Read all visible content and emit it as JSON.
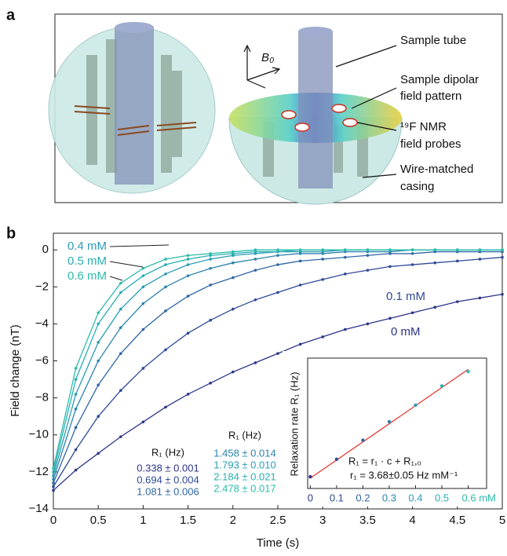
{
  "panel_a": {
    "label": "a",
    "b_field": "B₀",
    "annotations": [
      [
        "Sample tube"
      ],
      [
        "Sample dipolar",
        "field pattern"
      ],
      [
        "¹⁹F NMR",
        "field probes"
      ],
      [
        "Wire-matched",
        "casing"
      ]
    ]
  },
  "rate_table": [
    {
      "header": "R₁ (Hz)",
      "rows": [
        "0.338 ± 0.001",
        "0.694 ± 0.004",
        "1.081 ± 0.006"
      ]
    },
    {
      "header": "R₁ (Hz)",
      "rows": [
        "1.458 ± 0.014",
        "1.793 ± 0.010",
        "2.184 ± 0.021",
        "2.478 ± 0.017"
      ]
    }
  ],
  "chart_data": [
    {
      "type": "line",
      "panel_label": "b",
      "xlabel": "Time (s)",
      "ylabel": "Field change (nT)",
      "xlim": [
        0,
        5
      ],
      "ylim": [
        -14,
        0.9
      ],
      "xticks": [
        0,
        0.5,
        1,
        1.5,
        2,
        2.5,
        3,
        3.5,
        4,
        4.5,
        5
      ],
      "yticks": [
        {
          "value": -14,
          "label": "−14"
        },
        {
          "value": -12,
          "label": "−12"
        },
        {
          "value": -10,
          "label": "−10"
        },
        {
          "value": -8,
          "label": "−8"
        },
        {
          "value": -6,
          "label": "−6"
        },
        {
          "value": -4,
          "label": "−4"
        },
        {
          "value": -2,
          "label": "−2"
        },
        0
      ],
      "x": [
        0,
        0.25,
        0.5,
        0.75,
        1,
        1.25,
        1.5,
        1.75,
        2,
        2.25,
        2.5,
        2.75,
        3,
        3.25,
        3.5,
        3.75,
        4,
        4.25,
        4.5,
        4.75,
        5
      ],
      "series": [
        {
          "name": "0 mM",
          "color": "#2b3589",
          "values": [
            -13.0,
            -11.9,
            -11.0,
            -10.1,
            -9.3,
            -8.5,
            -7.8,
            -7.2,
            -6.6,
            -6.1,
            -5.6,
            -5.1,
            -4.7,
            -4.3,
            -4.0,
            -3.7,
            -3.4,
            -3.1,
            -2.8,
            -2.6,
            -2.4
          ]
        },
        {
          "name": "0.1 mM",
          "color": "#2e4a97",
          "values": [
            -12.8,
            -10.8,
            -9.0,
            -7.6,
            -6.4,
            -5.4,
            -4.5,
            -3.8,
            -3.2,
            -2.7,
            -2.3,
            -1.9,
            -1.6,
            -1.3,
            -1.1,
            -0.9,
            -0.8,
            -0.7,
            -0.6,
            -0.5,
            -0.4
          ]
        },
        {
          "color": "#2f66a4",
          "values": [
            -12.6,
            -9.6,
            -7.3,
            -5.6,
            -4.3,
            -3.3,
            -2.5,
            -1.9,
            -1.5,
            -1.1,
            -0.8,
            -0.6,
            -0.5,
            -0.4,
            -0.3,
            -0.2,
            -0.2,
            -0.1,
            -0.1,
            -0.1,
            -0.1
          ]
        },
        {
          "color": "#2c83ad",
          "values": [
            -12.4,
            -8.6,
            -6.0,
            -4.2,
            -2.9,
            -2.0,
            -1.4,
            -1.0,
            -0.7,
            -0.5,
            -0.3,
            -0.2,
            -0.2,
            -0.1,
            -0.1,
            -0.1,
            0,
            0,
            0,
            0,
            0
          ]
        },
        {
          "name": "0.4 mM",
          "color": "#2a9cb4",
          "values": [
            -12.2,
            -7.8,
            -5.0,
            -3.2,
            -2.0,
            -1.3,
            -0.8,
            -0.5,
            -0.3,
            -0.2,
            -0.1,
            -0.1,
            -0.1,
            0,
            0,
            0,
            0,
            0,
            0,
            0,
            0
          ]
        },
        {
          "name": "0.5 mM",
          "color": "#27aeb2",
          "values": [
            -12.0,
            -7.0,
            -4.0,
            -2.3,
            -1.4,
            -0.8,
            -0.5,
            -0.3,
            -0.2,
            -0.1,
            -0.1,
            0,
            0,
            0,
            0,
            0,
            0,
            0,
            0,
            0,
            0
          ]
        },
        {
          "name": "0.6 mM",
          "color": "#2bbcaa",
          "values": [
            -11.8,
            -6.4,
            -3.4,
            -1.8,
            -1.0,
            -0.5,
            -0.3,
            -0.2,
            -0.1,
            0,
            0,
            0,
            0,
            0,
            0,
            0,
            0,
            0,
            0,
            0,
            0
          ]
        }
      ]
    },
    {
      "type": "scatter",
      "ylabel": "Relaxation rate R₁ (Hz)",
      "xlim": [
        -0.01,
        0.67
      ],
      "ylim": [
        0.1,
        2.75
      ],
      "xticks": [
        0,
        0.1,
        0.2,
        0.3,
        0.4,
        0.5,
        {
          "value": 0.6,
          "label": "0.6 mM"
        }
      ],
      "x": [
        0,
        0.1,
        0.2,
        0.3,
        0.4,
        0.5,
        0.6
      ],
      "values": [
        0.338,
        0.694,
        1.081,
        1.458,
        1.793,
        2.184,
        2.478
      ],
      "colors": [
        "#2b3589",
        "#2e4a97",
        "#2f66a4",
        "#2c83ad",
        "#2a9cb4",
        "#27aeb2",
        "#2bbcaa"
      ],
      "fit": {
        "x": [
          0,
          0.6
        ],
        "values": [
          0.31,
          2.52
        ],
        "color": "#e0302a"
      },
      "fit_equation": "R₁ = r₁ · c + R₁,₀",
      "fit_result": "r₁ = 3.68±0.05 Hz mM⁻¹"
    }
  ]
}
